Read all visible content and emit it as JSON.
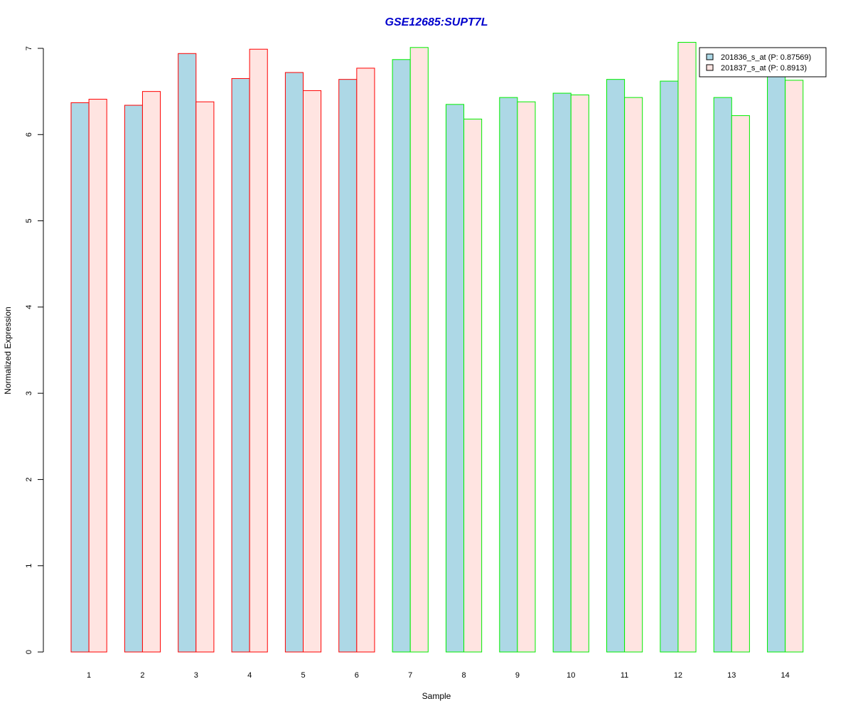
{
  "chart_data": {
    "type": "bar",
    "title": "GSE12685:SUPT7L",
    "xlabel": "Sample",
    "ylabel": "Normalized Expression",
    "categories": [
      "1",
      "2",
      "3",
      "4",
      "5",
      "6",
      "7",
      "8",
      "9",
      "10",
      "11",
      "12",
      "13",
      "14"
    ],
    "series": [
      {
        "name": "201836_s_at (P: 0.87569)",
        "fill": "#add8e6",
        "values": [
          6.37,
          6.34,
          6.94,
          6.65,
          6.72,
          6.64,
          6.87,
          6.35,
          6.43,
          6.48,
          6.64,
          6.62,
          6.43,
          6.7
        ]
      },
      {
        "name": "201837_s_at (P: 0.8913)",
        "fill": "#ffe4e1",
        "values": [
          6.41,
          6.5,
          6.38,
          6.99,
          6.51,
          6.77,
          7.01,
          6.18,
          6.38,
          6.46,
          6.43,
          7.07,
          6.22,
          6.63
        ]
      }
    ],
    "group_border_colors": [
      "#ff0000",
      "#ff0000",
      "#ff0000",
      "#ff0000",
      "#ff0000",
      "#ff0000",
      "#00ee00",
      "#00ee00",
      "#00ee00",
      "#00ee00",
      "#00ee00",
      "#00ee00",
      "#00ee00",
      "#00ee00"
    ],
    "yticks": [
      "0",
      "1",
      "2",
      "3",
      "4",
      "5",
      "6",
      "7"
    ],
    "ylim": [
      0,
      7
    ],
    "grid": false,
    "legend_position": "top-right",
    "title_color": "#0000cc"
  }
}
